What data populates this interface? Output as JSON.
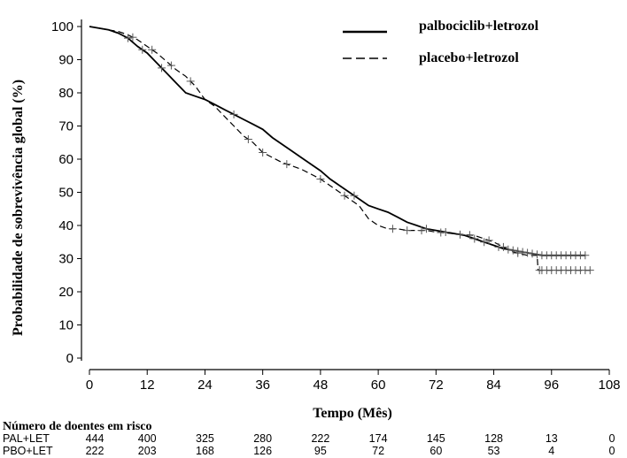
{
  "chart_data": {
    "type": "line",
    "xlabel": "Tempo (Mês)",
    "ylabel": "Probabilidade de sobrevivência global (%)",
    "xlim": [
      0,
      108
    ],
    "ylim": [
      0,
      100
    ],
    "x_ticks": [
      0,
      12,
      24,
      36,
      48,
      60,
      72,
      84,
      96,
      108
    ],
    "y_ticks": [
      0,
      10,
      20,
      30,
      40,
      50,
      60,
      70,
      80,
      90,
      100
    ],
    "legend_position": "top-right",
    "series": [
      {
        "name": "palbociclib+letrozol",
        "style": "solid",
        "color": "#000000",
        "censor_color": "#555555",
        "points": [
          [
            0,
            100
          ],
          [
            2,
            99.5
          ],
          [
            4,
            99
          ],
          [
            6,
            98
          ],
          [
            8,
            96.5
          ],
          [
            10,
            94
          ],
          [
            12,
            92
          ],
          [
            14,
            89
          ],
          [
            16,
            86
          ],
          [
            18,
            83
          ],
          [
            20,
            80
          ],
          [
            22,
            79
          ],
          [
            24,
            78
          ],
          [
            26,
            76.5
          ],
          [
            28,
            75
          ],
          [
            30,
            73.5
          ],
          [
            32,
            72
          ],
          [
            34,
            70.5
          ],
          [
            36,
            69
          ],
          [
            38,
            66.5
          ],
          [
            40,
            64.5
          ],
          [
            42,
            62.5
          ],
          [
            44,
            60.5
          ],
          [
            46,
            58.5
          ],
          [
            48,
            56.5
          ],
          [
            50,
            54
          ],
          [
            52,
            52
          ],
          [
            54,
            50
          ],
          [
            56,
            48
          ],
          [
            58,
            46
          ],
          [
            60,
            45
          ],
          [
            62,
            44
          ],
          [
            64,
            42.5
          ],
          [
            66,
            41
          ],
          [
            68,
            40
          ],
          [
            70,
            39
          ],
          [
            72,
            38.5
          ],
          [
            74,
            38
          ],
          [
            76,
            37.5
          ],
          [
            78,
            37
          ],
          [
            80,
            36
          ],
          [
            82,
            35
          ],
          [
            84,
            34
          ],
          [
            86,
            33
          ],
          [
            88,
            32.5
          ],
          [
            90,
            32
          ],
          [
            92,
            31.5
          ],
          [
            94,
            31
          ],
          [
            96,
            31
          ],
          [
            100,
            31
          ],
          [
            103,
            31
          ]
        ],
        "censor_x": [
          8,
          11,
          15,
          30,
          55,
          70,
          74,
          77,
          80,
          82,
          85,
          87,
          88,
          89,
          90,
          91,
          92,
          93,
          94,
          95,
          96,
          97,
          98,
          99,
          100,
          101,
          102,
          103
        ]
      },
      {
        "name": "placebo+letrozol",
        "style": "dashed",
        "color": "#000000",
        "censor_color": "#555555",
        "points": [
          [
            0,
            100
          ],
          [
            2,
            99.5
          ],
          [
            4,
            99
          ],
          [
            6,
            98.5
          ],
          [
            8,
            97.5
          ],
          [
            10,
            96
          ],
          [
            12,
            94
          ],
          [
            14,
            92
          ],
          [
            16,
            89.5
          ],
          [
            18,
            87
          ],
          [
            20,
            85
          ],
          [
            22,
            82
          ],
          [
            24,
            78
          ],
          [
            26,
            76
          ],
          [
            28,
            73
          ],
          [
            30,
            70
          ],
          [
            32,
            67
          ],
          [
            34,
            65
          ],
          [
            36,
            62
          ],
          [
            38,
            60.5
          ],
          [
            40,
            59
          ],
          [
            42,
            58
          ],
          [
            44,
            57
          ],
          [
            46,
            55.5
          ],
          [
            48,
            54
          ],
          [
            50,
            52
          ],
          [
            52,
            50
          ],
          [
            54,
            48
          ],
          [
            56,
            46
          ],
          [
            58,
            42
          ],
          [
            60,
            40
          ],
          [
            62,
            39
          ],
          [
            64,
            39
          ],
          [
            66,
            38.5
          ],
          [
            68,
            38.5
          ],
          [
            70,
            38.5
          ],
          [
            72,
            38
          ],
          [
            76,
            37.5
          ],
          [
            80,
            37
          ],
          [
            84,
            35
          ],
          [
            88,
            32
          ],
          [
            91,
            31
          ],
          [
            93,
            31
          ],
          [
            93.2,
            26.5
          ],
          [
            96,
            26.5
          ],
          [
            104,
            26.5
          ]
        ],
        "censor_x": [
          9,
          13,
          17,
          21,
          33,
          36,
          41,
          48,
          53,
          63,
          66,
          69,
          73,
          79,
          83,
          86,
          89,
          93.5,
          94,
          95,
          96,
          97,
          98,
          99,
          100,
          101,
          102,
          103,
          104
        ]
      }
    ],
    "risk_table": {
      "title": "Número de doentes em risco",
      "times": [
        0,
        12,
        24,
        36,
        48,
        60,
        72,
        84,
        96,
        108
      ],
      "rows": [
        {
          "label": "PAL+LET",
          "values": [
            "444",
            "400",
            "325",
            "280",
            "222",
            "174",
            "145",
            "128",
            "13",
            "0"
          ]
        },
        {
          "label": "PBO+LET",
          "values": [
            "222",
            "203",
            "168",
            "126",
            "95",
            "72",
            "60",
            "53",
            "4",
            "0"
          ]
        }
      ]
    }
  }
}
